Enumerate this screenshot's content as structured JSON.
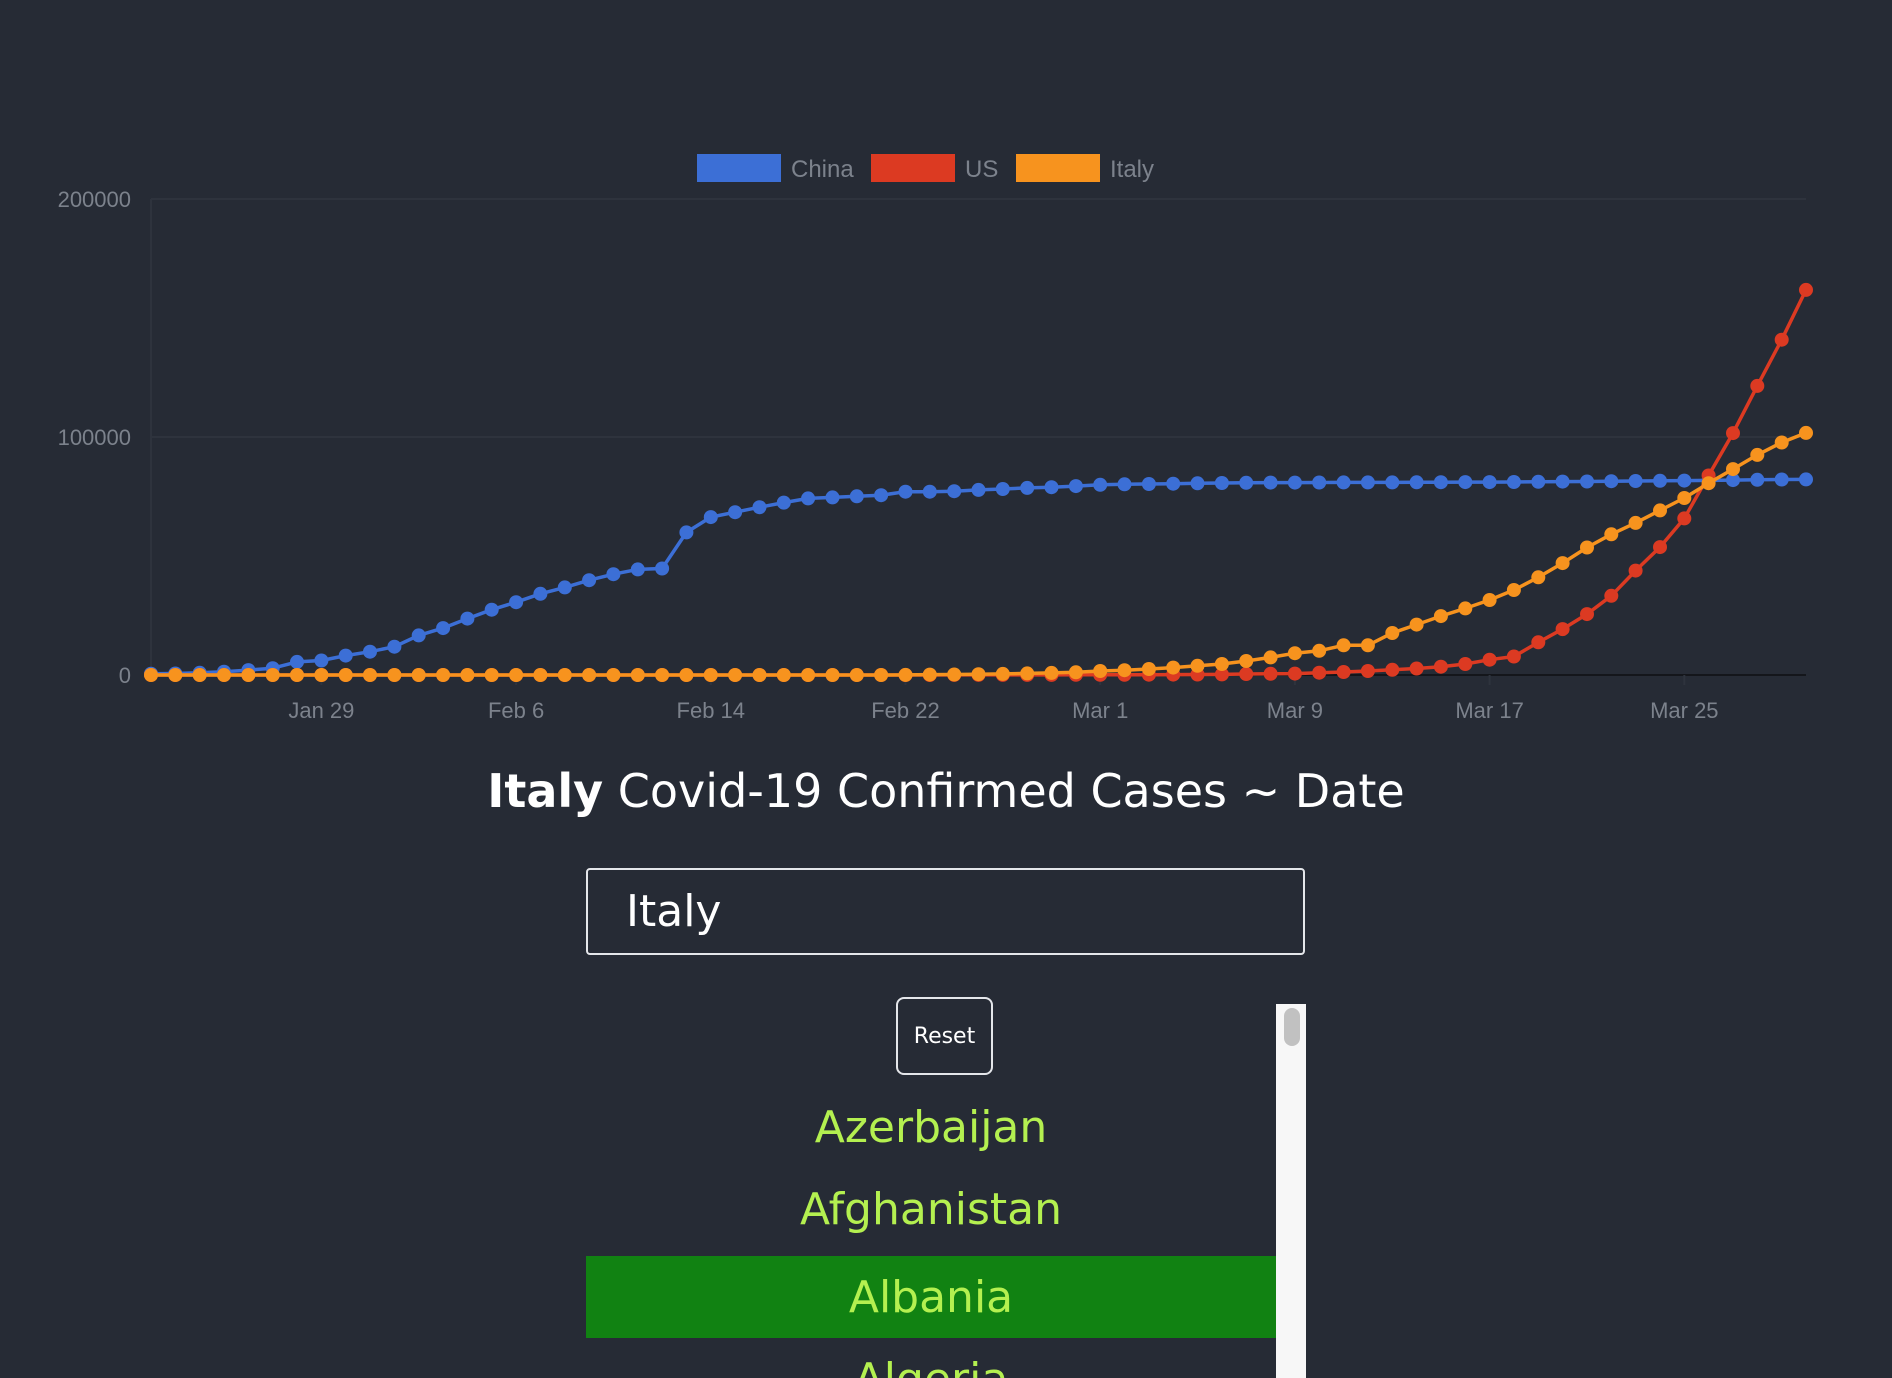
{
  "chart_data": {
    "type": "line",
    "x_start": "2020-01-22",
    "x_end": "2020-03-30",
    "x_ticks": [
      "Jan 29",
      "Feb 6",
      "Feb 14",
      "Feb 22",
      "Mar 1",
      "Mar 9",
      "Mar 17",
      "Mar 25"
    ],
    "ylim": [
      0,
      200000
    ],
    "y_ticks": [
      "0",
      "100000",
      "200000"
    ],
    "legend_position": "top-center",
    "grid": true,
    "series": [
      {
        "name": "China",
        "color": "#3c6fd6",
        "values": [
          548,
          643,
          920,
          1406,
          2075,
          2877,
          5509,
          6087,
          8141,
          9802,
          11891,
          16630,
          19716,
          23707,
          27440,
          30587,
          34110,
          36814,
          39829,
          42354,
          44386,
          44759,
          59895,
          66358,
          68413,
          70513,
          72434,
          74211,
          74619,
          75077,
          75550,
          77001,
          77022,
          77241,
          77754,
          78166,
          78600,
          78928,
          79356,
          79932,
          80136,
          80261,
          80386,
          80537,
          80690,
          80770,
          80823,
          80860,
          80887,
          80921,
          80932,
          80945,
          80977,
          81003,
          81033,
          81058,
          81102,
          81156,
          81250,
          81305,
          81435,
          81498,
          81591,
          81661,
          81782,
          81897,
          81999,
          82122,
          82198
        ]
      },
      {
        "name": "US",
        "color": "#dc3a22",
        "values": [
          1,
          1,
          2,
          2,
          5,
          5,
          5,
          5,
          5,
          7,
          8,
          8,
          11,
          11,
          11,
          11,
          11,
          11,
          11,
          11,
          12,
          12,
          13,
          13,
          13,
          13,
          13,
          13,
          13,
          13,
          15,
          15,
          15,
          51,
          51,
          57,
          58,
          60,
          68,
          74,
          98,
          118,
          149,
          217,
          262,
          402,
          518,
          583,
          959,
          1281,
          1663,
          2179,
          2727,
          3499,
          4632,
          6421,
          7783,
          13747,
          19273,
          25600,
          33276,
          43847,
          53740,
          65778,
          83836,
          101657,
          121478,
          140886,
          161807
        ]
      },
      {
        "name": "Italy",
        "color": "#f7931e",
        "values": [
          0,
          0,
          0,
          0,
          0,
          0,
          0,
          0,
          0,
          2,
          2,
          2,
          2,
          2,
          2,
          2,
          3,
          3,
          3,
          3,
          3,
          3,
          3,
          3,
          3,
          3,
          3,
          3,
          3,
          3,
          20,
          62,
          155,
          229,
          322,
          453,
          655,
          888,
          1128,
          1694,
          2036,
          2502,
          3089,
          3858,
          4636,
          5883,
          7375,
          9172,
          10149,
          12462,
          12462,
          17660,
          21157,
          24747,
          27980,
          31506,
          35713,
          41035,
          47021,
          53578,
          59138,
          63927,
          69176,
          74386,
          80589,
          86498,
          92472,
          97689,
          101739
        ]
      }
    ]
  },
  "title": {
    "country": "Italy",
    "rest": "Covid-19 Confirmed Cases ~ Date"
  },
  "search": {
    "value": "Italy"
  },
  "reset_label": "Reset",
  "countries": [
    {
      "name": "Azerbaijan",
      "selected": false
    },
    {
      "name": "Afghanistan",
      "selected": false
    },
    {
      "name": "Albania",
      "selected": true
    },
    {
      "name": "Algeria",
      "selected": false
    }
  ],
  "colors": {
    "background": "#262b35",
    "list_text": "#b4f050",
    "list_selected": "#118212"
  }
}
